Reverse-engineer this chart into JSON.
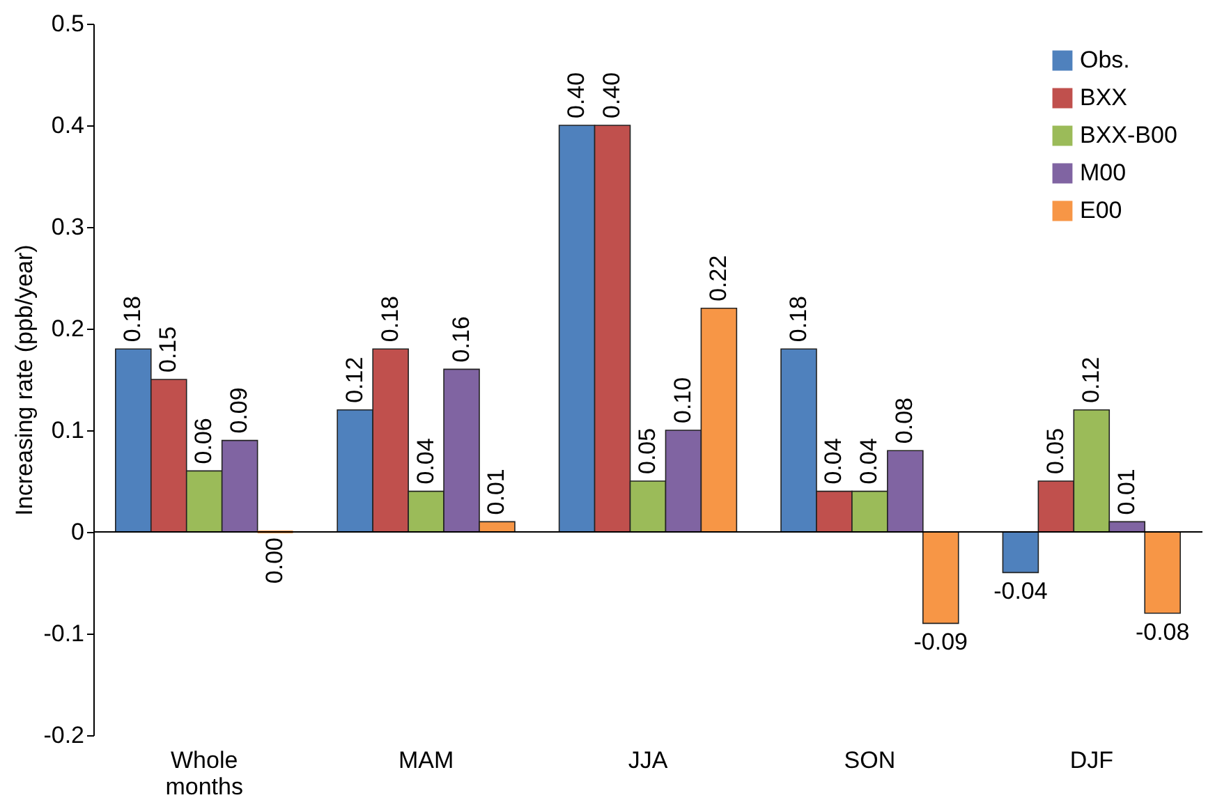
{
  "chart_data": {
    "type": "bar",
    "ylabel": "Increasing rate (ppb/year)",
    "categories": [
      "Whole months",
      "MAM",
      "JJA",
      "SON",
      "DJF"
    ],
    "series": [
      {
        "name": "Obs.",
        "color": "#4f81bd",
        "values": [
          0.18,
          0.12,
          0.4,
          0.18,
          -0.04
        ],
        "value_labels": [
          "0.18",
          "0.12",
          "0.40",
          "0.18",
          "-0.04"
        ]
      },
      {
        "name": "BXX",
        "color": "#c0504d",
        "values": [
          0.15,
          0.18,
          0.4,
          0.04,
          0.05
        ],
        "value_labels": [
          "0.15",
          "0.18",
          "0.40",
          "0.04",
          "0.05"
        ]
      },
      {
        "name": "BXX-B00",
        "color": "#9bbb59",
        "values": [
          0.06,
          0.04,
          0.05,
          0.04,
          0.12
        ],
        "value_labels": [
          "0.06",
          "0.04",
          "0.05",
          "0.04",
          "0.12"
        ]
      },
      {
        "name": "M00",
        "color": "#8064a2",
        "values": [
          0.09,
          0.16,
          0.1,
          0.08,
          0.01
        ],
        "value_labels": [
          "0.09",
          "0.16",
          "0.10",
          "0.08",
          "0.01"
        ]
      },
      {
        "name": "E00",
        "color": "#f79646",
        "values": [
          0.0,
          0.01,
          0.22,
          -0.09,
          -0.08
        ],
        "value_labels": [
          "0.00",
          "0.01",
          "0.22",
          "-0.09",
          "-0.08"
        ]
      }
    ],
    "ylim": [
      -0.2,
      0.5
    ],
    "yticks": [
      -0.2,
      -0.1,
      0,
      0.1,
      0.2,
      0.3,
      0.4,
      0.5
    ],
    "legend": "top right"
  }
}
